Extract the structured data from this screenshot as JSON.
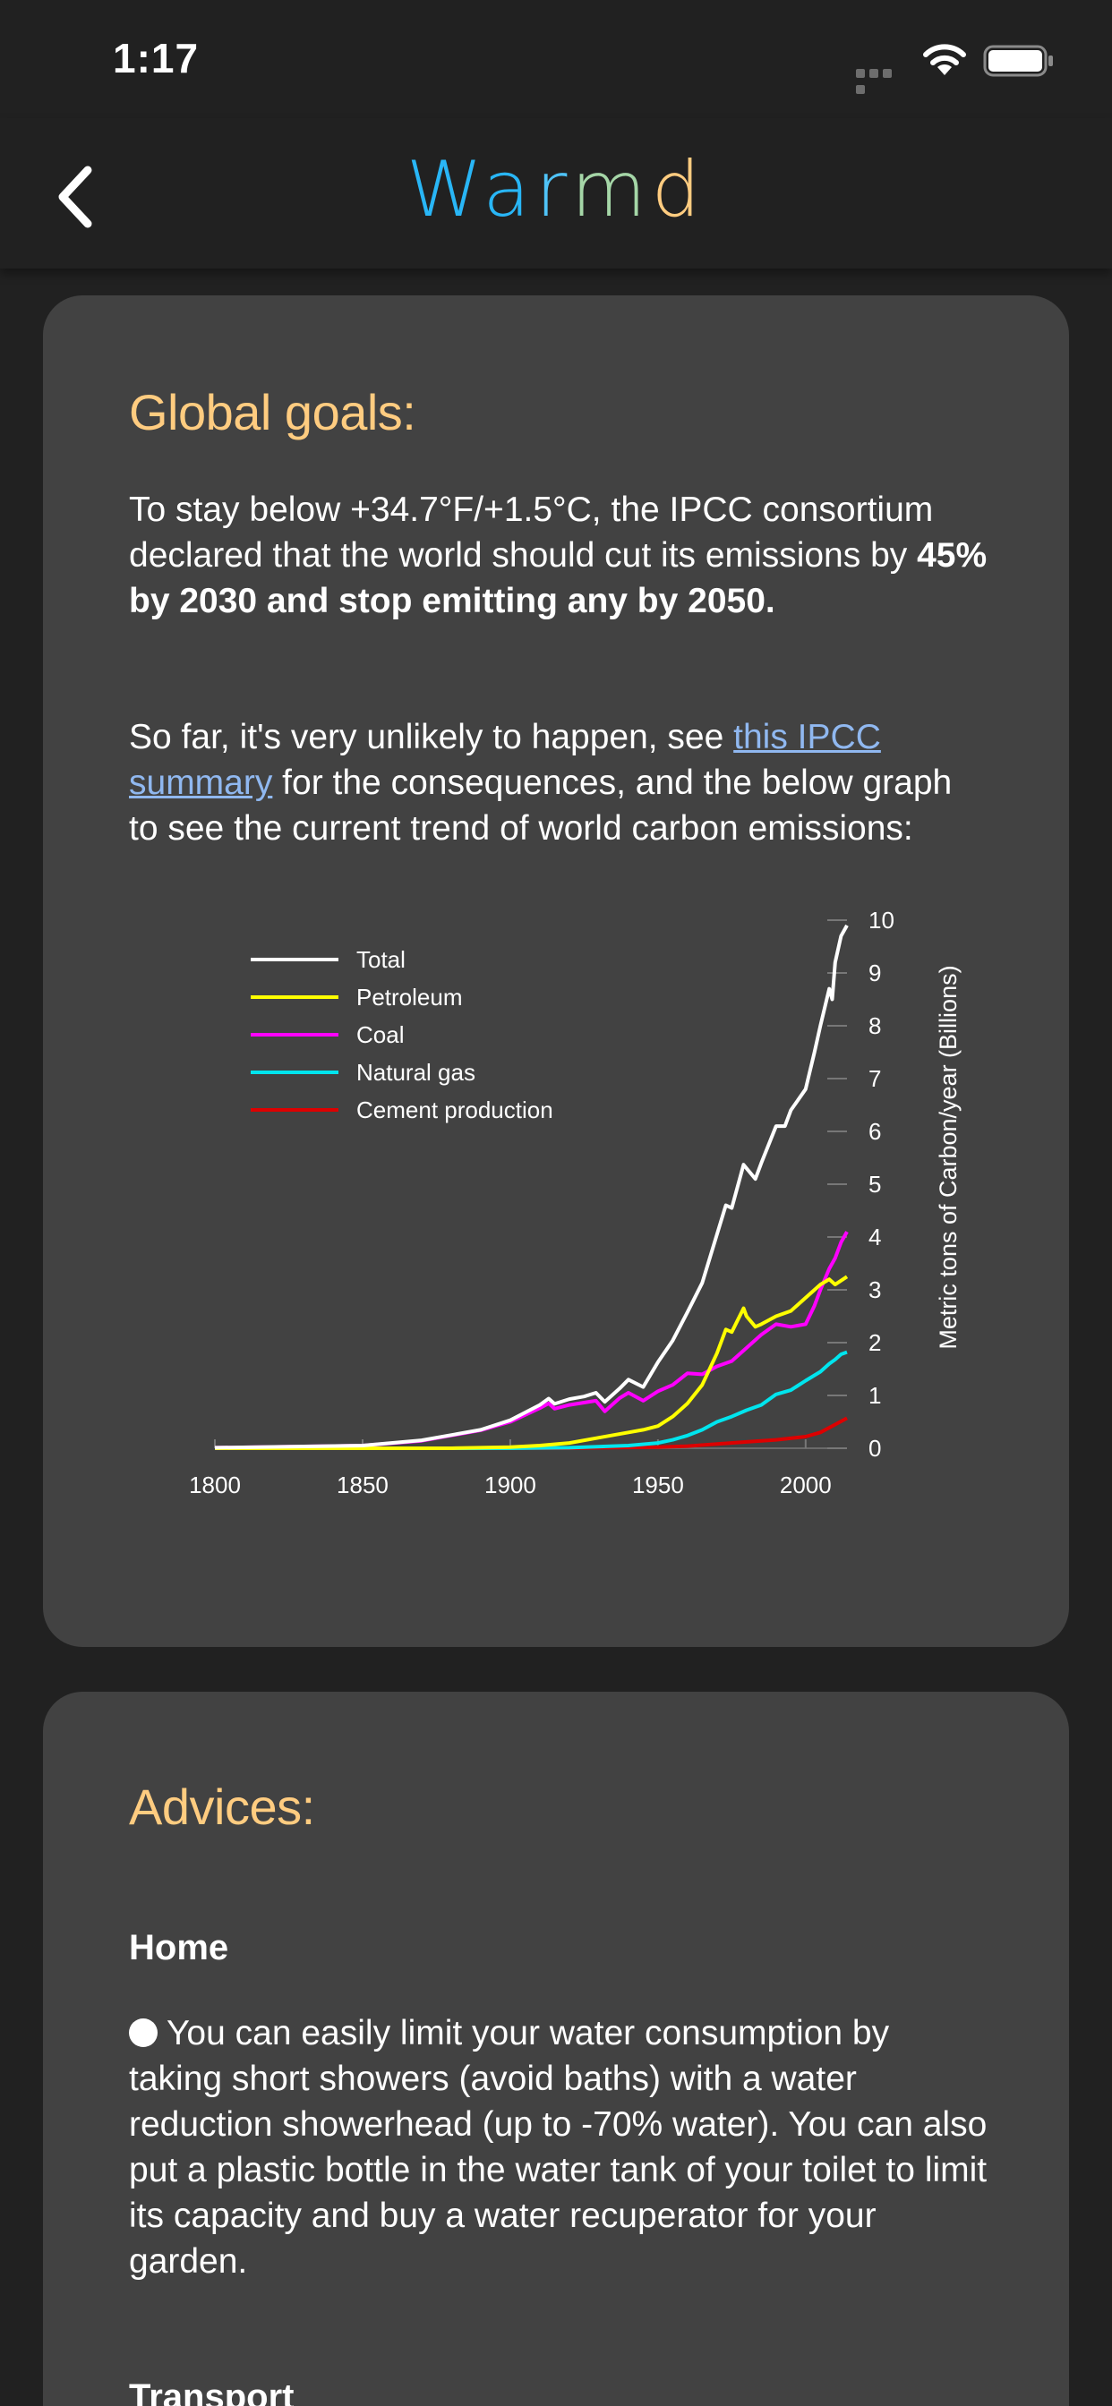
{
  "status_bar": {
    "time": "1:17"
  },
  "header": {
    "title_letters": [
      {
        "ch": "W",
        "color": "#29b6f6"
      },
      {
        "ch": "a",
        "color": "#29b6f6"
      },
      {
        "ch": "r",
        "color": "#4fc3f7"
      },
      {
        "ch": "m",
        "color": "#a5d6a7"
      },
      {
        "ch": "d",
        "color": "#ffcc80"
      }
    ]
  },
  "goals": {
    "heading": "Global goals:",
    "para1_text": "To stay below +34.7°F/+1.5°C, the IPCC consortium declared that the world should cut its emissions by ",
    "para1_bold": "45% by 2030 and stop emitting any by 2050.",
    "para2_before": "So far, it's very unlikely to happen, see ",
    "para2_link": "this IPCC summary",
    "para2_after": " for the consequences, and the below graph to see the current trend of world carbon emissions:"
  },
  "chart_data": {
    "type": "line",
    "ylabel": "Metric tons of Carbon/year (Billions)",
    "xlim": [
      1800,
      2014
    ],
    "ylim": [
      0,
      10
    ],
    "x_ticks": [
      1800,
      1850,
      1900,
      1950,
      2000
    ],
    "y_ticks": [
      0,
      1,
      2,
      3,
      4,
      5,
      6,
      7,
      8,
      9,
      10
    ],
    "legend_position": "top-left",
    "series": [
      {
        "name": "Total",
        "color": "#ffffff",
        "points": [
          [
            1800,
            0.01
          ],
          [
            1850,
            0.05
          ],
          [
            1870,
            0.15
          ],
          [
            1890,
            0.35
          ],
          [
            1900,
            0.53
          ],
          [
            1910,
            0.82
          ],
          [
            1913,
            0.94
          ],
          [
            1915,
            0.84
          ],
          [
            1920,
            0.93
          ],
          [
            1925,
            0.98
          ],
          [
            1929,
            1.05
          ],
          [
            1932,
            0.88
          ],
          [
            1937,
            1.13
          ],
          [
            1940,
            1.3
          ],
          [
            1945,
            1.16
          ],
          [
            1950,
            1.63
          ],
          [
            1955,
            2.04
          ],
          [
            1960,
            2.58
          ],
          [
            1965,
            3.13
          ],
          [
            1970,
            4.05
          ],
          [
            1973,
            4.6
          ],
          [
            1975,
            4.55
          ],
          [
            1979,
            5.37
          ],
          [
            1980,
            5.3
          ],
          [
            1983,
            5.1
          ],
          [
            1985,
            5.4
          ],
          [
            1990,
            6.1
          ],
          [
            1993,
            6.1
          ],
          [
            1995,
            6.4
          ],
          [
            2000,
            6.8
          ],
          [
            2003,
            7.5
          ],
          [
            2005,
            8.0
          ],
          [
            2008,
            8.7
          ],
          [
            2009,
            8.5
          ],
          [
            2010,
            9.2
          ],
          [
            2012,
            9.7
          ],
          [
            2014,
            9.9
          ]
        ]
      },
      {
        "name": "Petroleum",
        "color": "#ffff00",
        "points": [
          [
            1800,
            0
          ],
          [
            1880,
            0
          ],
          [
            1900,
            0.02
          ],
          [
            1910,
            0.05
          ],
          [
            1920,
            0.1
          ],
          [
            1930,
            0.2
          ],
          [
            1940,
            0.3
          ],
          [
            1945,
            0.35
          ],
          [
            1950,
            0.42
          ],
          [
            1955,
            0.6
          ],
          [
            1960,
            0.85
          ],
          [
            1965,
            1.2
          ],
          [
            1970,
            1.8
          ],
          [
            1973,
            2.25
          ],
          [
            1975,
            2.2
          ],
          [
            1979,
            2.65
          ],
          [
            1980,
            2.5
          ],
          [
            1983,
            2.3
          ],
          [
            1985,
            2.35
          ],
          [
            1990,
            2.5
          ],
          [
            1995,
            2.6
          ],
          [
            2000,
            2.85
          ],
          [
            2005,
            3.1
          ],
          [
            2008,
            3.2
          ],
          [
            2010,
            3.1
          ],
          [
            2014,
            3.25
          ]
        ]
      },
      {
        "name": "Coal",
        "color": "#ff00ff",
        "points": [
          [
            1800,
            0.01
          ],
          [
            1850,
            0.05
          ],
          [
            1870,
            0.14
          ],
          [
            1890,
            0.34
          ],
          [
            1900,
            0.5
          ],
          [
            1910,
            0.76
          ],
          [
            1913,
            0.85
          ],
          [
            1915,
            0.75
          ],
          [
            1920,
            0.82
          ],
          [
            1929,
            0.9
          ],
          [
            1932,
            0.7
          ],
          [
            1937,
            0.95
          ],
          [
            1940,
            1.05
          ],
          [
            1945,
            0.9
          ],
          [
            1950,
            1.08
          ],
          [
            1955,
            1.2
          ],
          [
            1960,
            1.42
          ],
          [
            1965,
            1.4
          ],
          [
            1970,
            1.55
          ],
          [
            1975,
            1.65
          ],
          [
            1980,
            1.9
          ],
          [
            1985,
            2.15
          ],
          [
            1990,
            2.35
          ],
          [
            1995,
            2.3
          ],
          [
            2000,
            2.35
          ],
          [
            2003,
            2.7
          ],
          [
            2005,
            3.0
          ],
          [
            2008,
            3.4
          ],
          [
            2010,
            3.6
          ],
          [
            2012,
            3.9
          ],
          [
            2014,
            4.1
          ]
        ]
      },
      {
        "name": "Natural gas",
        "color": "#00e5ee",
        "points": [
          [
            1800,
            0
          ],
          [
            1900,
            0
          ],
          [
            1920,
            0.01
          ],
          [
            1940,
            0.05
          ],
          [
            1950,
            0.1
          ],
          [
            1955,
            0.16
          ],
          [
            1960,
            0.24
          ],
          [
            1965,
            0.35
          ],
          [
            1970,
            0.5
          ],
          [
            1975,
            0.6
          ],
          [
            1980,
            0.72
          ],
          [
            1985,
            0.82
          ],
          [
            1990,
            1.02
          ],
          [
            1995,
            1.1
          ],
          [
            2000,
            1.28
          ],
          [
            2005,
            1.45
          ],
          [
            2008,
            1.6
          ],
          [
            2010,
            1.68
          ],
          [
            2012,
            1.78
          ],
          [
            2014,
            1.82
          ]
        ]
      },
      {
        "name": "Cement production",
        "color": "#dd0000",
        "points": [
          [
            1800,
            0
          ],
          [
            1920,
            0
          ],
          [
            1930,
            0.01
          ],
          [
            1950,
            0.02
          ],
          [
            1960,
            0.04
          ],
          [
            1970,
            0.08
          ],
          [
            1980,
            0.12
          ],
          [
            1990,
            0.16
          ],
          [
            2000,
            0.22
          ],
          [
            2005,
            0.3
          ],
          [
            2010,
            0.45
          ],
          [
            2014,
            0.57
          ]
        ]
      }
    ]
  },
  "advice": {
    "heading": "Advices:",
    "home_heading": "Home",
    "home_text": "You can easily limit your water consumption by taking short showers (avoid baths) with a water reduction showerhead (up to -70% water). You can also put a plastic bottle in the water tank of your toilet to limit its capacity and buy a water recuperator for your garden.",
    "transport_heading": "Transport"
  }
}
